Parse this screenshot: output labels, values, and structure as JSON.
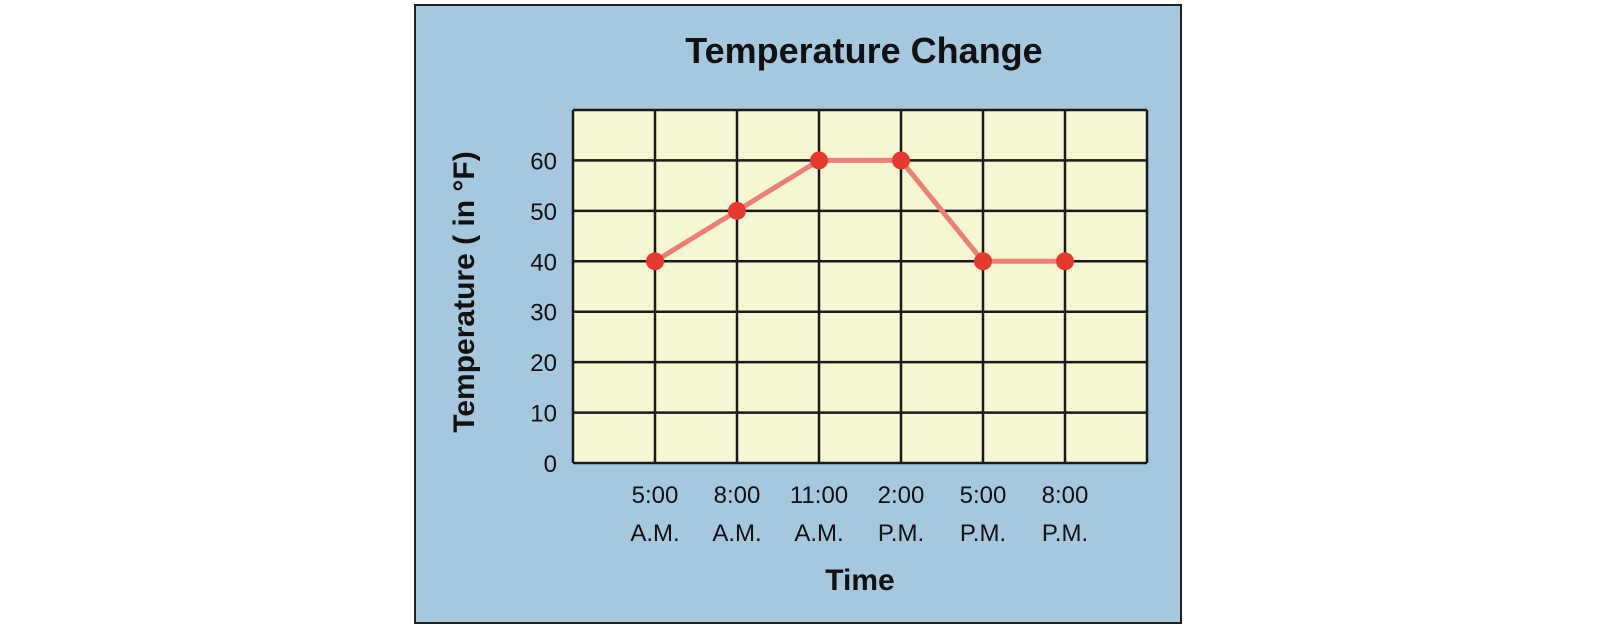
{
  "chart_data": {
    "type": "line",
    "title": "Temperature Change",
    "xlabel": "Time",
    "ylabel": "Temperature ( in °F)",
    "categories": [
      [
        "5:00",
        "A.M."
      ],
      [
        "8:00",
        "A.M."
      ],
      [
        "11:00",
        "A.M."
      ],
      [
        "2:00",
        "P.M."
      ],
      [
        "5:00",
        "P.M."
      ],
      [
        "8:00",
        "P.M."
      ]
    ],
    "series": [
      {
        "values": [
          40,
          50,
          60,
          60,
          40,
          40
        ]
      }
    ],
    "yticks": [
      0,
      10,
      20,
      30,
      40,
      50,
      60
    ],
    "ylim": [
      0,
      70
    ],
    "grid": true,
    "colors": {
      "panel_background": "#a5c8df",
      "plot_background": "#f5f7d2",
      "grid": "#1a1a1a",
      "line": "#ee7f74",
      "marker": "#e8392f"
    }
  }
}
